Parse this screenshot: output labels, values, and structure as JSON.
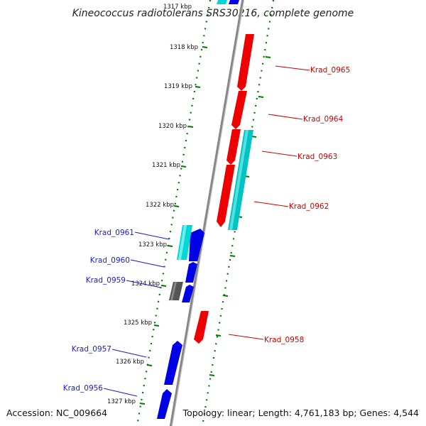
{
  "title": "Kineococcus radiotolerans SRS30216, complete genome",
  "accession": "Accession: NC_009664",
  "summary": "Topology: linear; Length: 4,761,183 bp; Genes: 4,544",
  "colors": {
    "forward_gene": "#0000e6",
    "reverse_gene": "#ee0000",
    "forward_pseudo": "#00d8d8",
    "reverse_pseudo": "#00c4c4",
    "other": "#555555",
    "backbone": "#888888",
    "tick": "#007700",
    "forward_label": "#1a1acc",
    "reverse_label": "#cc0000"
  },
  "kbp_ticks": [
    "1317 kbp",
    "1318 kbp",
    "1319 kbp",
    "1320 kbp",
    "1321 kbp",
    "1322 kbp",
    "1323 kbp",
    "1324 kbp",
    "1325 kbp",
    "1326 kbp",
    "1327 kbp"
  ],
  "forward_labels": [
    "Krad_0961",
    "Krad_0960",
    "Krad_0959",
    "Krad_0957",
    "Krad_0956"
  ],
  "reverse_labels": [
    "Krad_0965",
    "Krad_0964",
    "Krad_0963",
    "Krad_0962",
    "Krad_0958"
  ]
}
